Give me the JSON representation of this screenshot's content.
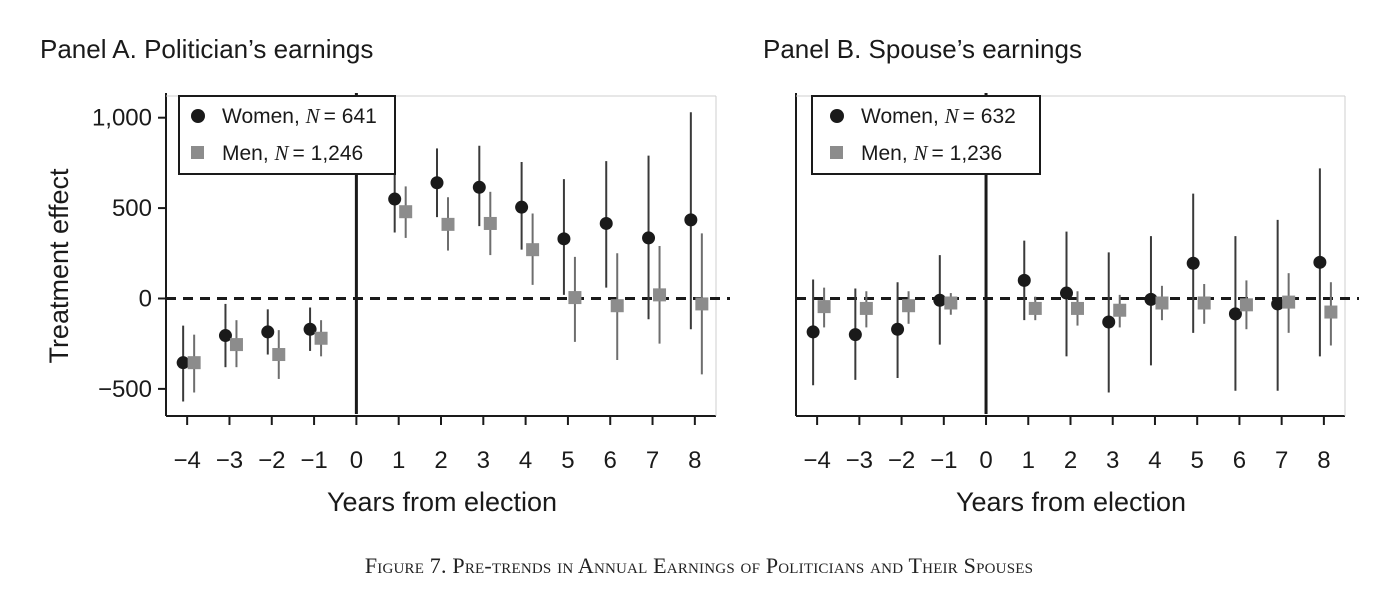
{
  "caption": "Figure 7. Pre-trends in Annual Earnings of Politicians and Their Spouses",
  "shared": {
    "ylabel": "Treatment effect",
    "xlabel": "Years from election",
    "y_ticks": [
      -500,
      0,
      500,
      1000
    ],
    "y_tick_labels": [
      "−500",
      "0",
      "500",
      "1,000"
    ],
    "x_ticks": [
      -4,
      -3,
      -2,
      -1,
      0,
      1,
      2,
      3,
      4,
      5,
      6,
      7,
      8
    ],
    "x_tick_labels": [
      "−4",
      "−3",
      "−2",
      "−1",
      "0",
      "1",
      "2",
      "3",
      "4",
      "5",
      "6",
      "7",
      "8"
    ],
    "colors": {
      "women": "#1a1a1a",
      "men": "#8c8c8c",
      "axis": "#1a1a1a",
      "zero_line": "#1a1a1a"
    }
  },
  "chart_data": [
    {
      "type": "scatter",
      "title": "Panel A. Politician’s earnings",
      "xlabel": "Years from election",
      "ylabel": "Treatment effect",
      "xlim": [
        -4.5,
        8.5
      ],
      "ylim": [
        -650,
        1120
      ],
      "grid": false,
      "legend_position": "top-left",
      "reference_lines": {
        "horizontal_dashed_at_y": 0,
        "vertical_solid_at_x": 0
      },
      "series": [
        {
          "name": "Women, N = 641",
          "legend_label": "Women, ",
          "legend_n": "= 641",
          "marker": "circle",
          "x": [
            -4,
            -3,
            -2,
            -1,
            1,
            2,
            3,
            4,
            5,
            6,
            7,
            8
          ],
          "y": [
            -355,
            -205,
            -185,
            -170,
            550,
            640,
            615,
            505,
            330,
            415,
            335,
            435
          ],
          "ci_low": [
            -570,
            -380,
            -310,
            -290,
            365,
            450,
            400,
            270,
            20,
            60,
            -115,
            -170
          ],
          "ci_high": [
            -150,
            -30,
            -60,
            -50,
            745,
            830,
            845,
            755,
            660,
            760,
            790,
            1030
          ]
        },
        {
          "name": "Men, N = 1,246",
          "legend_label": "Men, ",
          "legend_n": "= 1,246",
          "marker": "square",
          "x": [
            -4,
            -3,
            -2,
            -1,
            1,
            2,
            3,
            4,
            5,
            6,
            7,
            8
          ],
          "y": [
            -355,
            -255,
            -310,
            -220,
            480,
            410,
            415,
            270,
            5,
            -40,
            20,
            -30
          ],
          "ci_low": [
            -520,
            -380,
            -445,
            -320,
            335,
            265,
            240,
            75,
            -240,
            -340,
            -250,
            -420
          ],
          "ci_high": [
            -200,
            -120,
            -175,
            -120,
            620,
            560,
            590,
            470,
            230,
            250,
            290,
            360
          ]
        }
      ]
    },
    {
      "type": "scatter",
      "title": "Panel B. Spouse’s earnings",
      "xlabel": "Years from election",
      "ylabel": "",
      "xlim": [
        -4.5,
        8.5
      ],
      "ylim": [
        -650,
        1120
      ],
      "grid": false,
      "legend_position": "top-left",
      "reference_lines": {
        "horizontal_dashed_at_y": 0,
        "vertical_solid_at_x": 0
      },
      "series": [
        {
          "name": "Women, N = 632",
          "legend_label": "Women, ",
          "legend_n": "= 632",
          "marker": "circle",
          "x": [
            -4,
            -3,
            -2,
            -1,
            1,
            2,
            3,
            4,
            5,
            6,
            7,
            8
          ],
          "y": [
            -185,
            -200,
            -170,
            -10,
            100,
            30,
            -130,
            -5,
            195,
            -85,
            -30,
            200
          ],
          "ci_low": [
            -480,
            -450,
            -440,
            -255,
            -120,
            -320,
            -520,
            -370,
            -190,
            -510,
            -510,
            -320
          ],
          "ci_high": [
            105,
            55,
            90,
            240,
            320,
            370,
            255,
            345,
            580,
            345,
            435,
            720
          ]
        },
        {
          "name": "Men, N = 1,236",
          "legend_label": "Men, ",
          "legend_n": "= 1,236",
          "marker": "square",
          "x": [
            -4,
            -3,
            -2,
            -1,
            1,
            2,
            3,
            4,
            5,
            6,
            7,
            8
          ],
          "y": [
            -45,
            -55,
            -40,
            -25,
            -55,
            -55,
            -65,
            -25,
            -25,
            -35,
            -20,
            -75
          ],
          "ci_low": [
            -160,
            -160,
            -140,
            -90,
            -120,
            -150,
            -160,
            -120,
            -140,
            -170,
            -190,
            -260
          ],
          "ci_high": [
            60,
            40,
            40,
            30,
            10,
            40,
            20,
            70,
            80,
            100,
            140,
            90
          ]
        }
      ]
    }
  ]
}
